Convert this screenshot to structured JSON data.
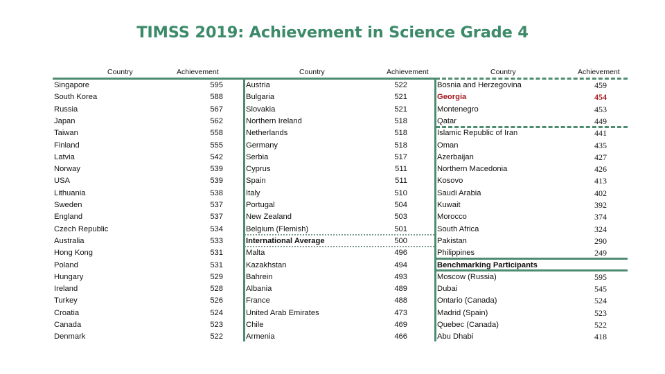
{
  "title": "TIMSS 2019: Achievement in Science Grade 4",
  "headers": {
    "country": "Country",
    "achievement": "Achievement"
  },
  "colors": {
    "title": "#3c8a69",
    "rules": "#4e8c72",
    "highlight": "#a3161d"
  },
  "columns": [
    {
      "rows": [
        {
          "country": "Singapore",
          "score": "595"
        },
        {
          "country": "South Korea",
          "score": "588"
        },
        {
          "country": "Russia",
          "score": "567"
        },
        {
          "country": "Japan",
          "score": "562"
        },
        {
          "country": "Taiwan",
          "score": "558"
        },
        {
          "country": "Finland",
          "score": "555"
        },
        {
          "country": "Latvia",
          "score": "542"
        },
        {
          "country": "Norway",
          "score": "539"
        },
        {
          "country": "USA",
          "score": "539"
        },
        {
          "country": "Lithuania",
          "score": "538"
        },
        {
          "country": "Sweden",
          "score": "537"
        },
        {
          "country": "England",
          "score": "537"
        },
        {
          "country": "Czech Republic",
          "score": "534"
        },
        {
          "country": "Australia",
          "score": "533"
        },
        {
          "country": "Hong Kong",
          "score": "531"
        },
        {
          "country": "Poland",
          "score": "531"
        },
        {
          "country": "Hungary",
          "score": "529"
        },
        {
          "country": "Ireland",
          "score": "528"
        },
        {
          "country": "Turkey",
          "score": "526"
        },
        {
          "country": "Croatia",
          "score": "524"
        },
        {
          "country": "Canada",
          "score": "523"
        },
        {
          "country": "Denmark",
          "score": "522"
        }
      ]
    },
    {
      "rows": [
        {
          "country": "Austria",
          "score": "522"
        },
        {
          "country": "Bulgaria",
          "score": "521"
        },
        {
          "country": "Slovakia",
          "score": "521"
        },
        {
          "country": "Northern Ireland",
          "score": "518"
        },
        {
          "country": "Netherlands",
          "score": "518"
        },
        {
          "country": "Germany",
          "score": "518"
        },
        {
          "country": "Serbia",
          "score": "517"
        },
        {
          "country": "Cyprus",
          "score": "511"
        },
        {
          "country": "Spain",
          "score": "511"
        },
        {
          "country": "Italy",
          "score": "510"
        },
        {
          "country": "Portugal",
          "score": "504"
        },
        {
          "country": "New Zealand",
          "score": "503"
        },
        {
          "country": "Belgium (Flemish)",
          "score": "501"
        },
        {
          "country": "International Average",
          "score": "500"
        },
        {
          "country": "Malta",
          "score": "496"
        },
        {
          "country": "Kazakhstan",
          "score": "494"
        },
        {
          "country": "Bahrein",
          "score": "493"
        },
        {
          "country": "Albania",
          "score": "489"
        },
        {
          "country": "France",
          "score": "488"
        },
        {
          "country": "United Arab Emirates",
          "score": "473"
        },
        {
          "country": "Chile",
          "score": "469"
        },
        {
          "country": "Armenia",
          "score": "466"
        }
      ]
    },
    {
      "rows": [
        {
          "country": "Bosnia and Herzegovina",
          "score": "459"
        },
        {
          "country": "Georgia",
          "score": "454"
        },
        {
          "country": "Montenegro",
          "score": "453"
        },
        {
          "country": " Qatar",
          "score": "449"
        },
        {
          "country": "Islamic Republic of Iran",
          "score": "441"
        },
        {
          "country": "Oman",
          "score": "435"
        },
        {
          "country": "Azerbaijan",
          "score": "427"
        },
        {
          "country": "Northern Macedonia",
          "score": "426"
        },
        {
          "country": "Kosovo",
          "score": "413"
        },
        {
          "country": "Saudi Arabia",
          "score": "402"
        },
        {
          "country": "Kuwait",
          "score": "392"
        },
        {
          "country": "Morocco",
          "score": "374"
        },
        {
          "country": "South Africa",
          "score": "324"
        },
        {
          "country": "Pakistan",
          "score": "290"
        },
        {
          "country": "Philippines",
          "score": "249"
        },
        {
          "country": "Benchmarking Participants",
          "score": ""
        },
        {
          "country": "Moscow (Russia)",
          "score": "595"
        },
        {
          "country": "Dubai",
          "score": "545"
        },
        {
          "country": "Ontario (Canada)",
          "score": "524"
        },
        {
          "country": "Madrid (Spain)",
          "score": "523"
        },
        {
          "country": "Quebec (Canada)",
          "score": "522"
        },
        {
          "country": "Abu Dhabi",
          "score": "418"
        }
      ]
    }
  ]
}
